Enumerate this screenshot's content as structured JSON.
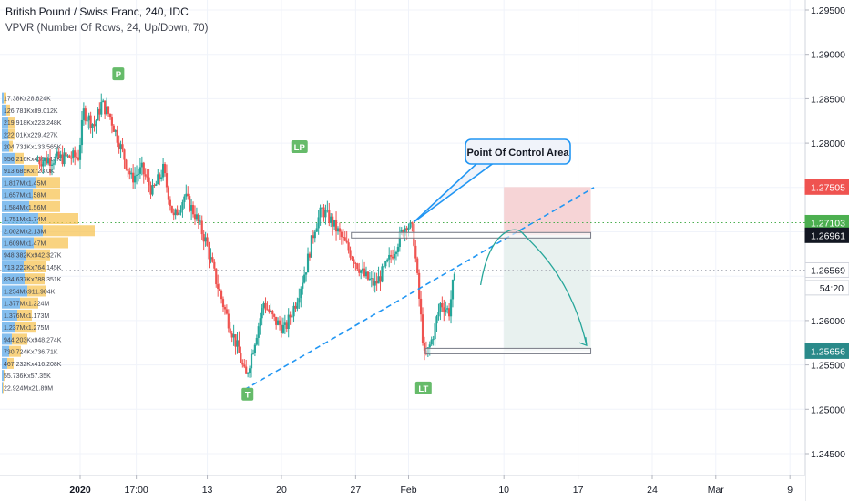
{
  "header": {
    "symbol_line": "British Pound / Swiss Franc, 240, IDC",
    "indicator_line": "VPVR (Number Of Rows, 24, Up/Down, 70)"
  },
  "colors": {
    "up": "#26a69a",
    "down": "#ef5350",
    "trendline": "#2196f3",
    "curve": "#26a69a",
    "dotted_green": "#4caf50",
    "vpvr_up": "#5ba8e8",
    "vpvr_down": "#f7c04a",
    "stop_zone": "#f6d4d6",
    "target_zone": "#e8f1ef"
  },
  "annotations": {
    "point_of_control": "Point Of Control Area",
    "labels": [
      {
        "text": "P",
        "x": 3.6,
        "y": 1.2878
      },
      {
        "text": "LP",
        "x": 20.7,
        "y": 1.2796
      },
      {
        "text": "T",
        "x": 15.8,
        "y": 1.2517
      },
      {
        "text": "LT",
        "x": 32.4,
        "y": 1.2524
      }
    ]
  },
  "chart_data": {
    "type": "candlestick",
    "title": "British Pound / Swiss Franc, 240, IDC",
    "x_range_days": [
      -5.3,
      56.2
    ],
    "ylim": [
      1.2405,
      1.2995
    ],
    "x_ticks": [
      {
        "label": "2020",
        "x": 0,
        "bold": true
      },
      {
        "label": "17:00",
        "x": 5.3
      },
      {
        "label": "13",
        "x": 12
      },
      {
        "label": "20",
        "x": 19
      },
      {
        "label": "27",
        "x": 26
      },
      {
        "label": "Feb",
        "x": 31
      },
      {
        "label": "10",
        "x": 40
      },
      {
        "label": "17",
        "x": 47
      },
      {
        "label": "24",
        "x": 54
      },
      {
        "label": "Mar",
        "x": 60
      },
      {
        "label": "9",
        "x": 67
      }
    ],
    "y_ticks": [
      "1.29500",
      "1.29000",
      "1.28500",
      "1.28000",
      "1.26000",
      "1.25500",
      "1.25000",
      "1.24500"
    ],
    "price_badges": [
      {
        "label": "1.27505",
        "value": 1.27505,
        "bg": "#ef5350",
        "fg": "#ffffff"
      },
      {
        "label": "1.27103",
        "value": 1.27103,
        "bg": "#4caf50",
        "fg": "#ffffff"
      },
      {
        "label": "1.26961",
        "value": 1.26961,
        "bg": "#131722",
        "fg": "#ffffff"
      },
      {
        "label": "1.26569",
        "value": 1.26569,
        "bg": "#ffffff",
        "fg": "#131722"
      },
      {
        "label": "54:20",
        "value": 1.2637,
        "bg": "#ffffff",
        "fg": "#131722"
      },
      {
        "label": "1.25656",
        "value": 1.25656,
        "bg": "#2a8a8a",
        "fg": "#ffffff"
      }
    ],
    "key_points": [
      {
        "x": -4,
        "y": 1.278
      },
      {
        "x": 0,
        "y": 1.2785
      },
      {
        "x": 0.5,
        "y": 1.2835
      },
      {
        "x": 1.5,
        "y": 1.282
      },
      {
        "x": 2.2,
        "y": 1.2845
      },
      {
        "x": 3,
        "y": 1.283
      },
      {
        "x": 4,
        "y": 1.2795
      },
      {
        "x": 5,
        "y": 1.276
      },
      {
        "x": 6,
        "y": 1.277
      },
      {
        "x": 7,
        "y": 1.2745
      },
      {
        "x": 8,
        "y": 1.277
      },
      {
        "x": 9,
        "y": 1.2715
      },
      {
        "x": 10,
        "y": 1.274
      },
      {
        "x": 11,
        "y": 1.272
      },
      {
        "x": 12,
        "y": 1.269
      },
      {
        "x": 13,
        "y": 1.2645
      },
      {
        "x": 14,
        "y": 1.2605
      },
      {
        "x": 15,
        "y": 1.257
      },
      {
        "x": 15.8,
        "y": 1.2535
      },
      {
        "x": 16.5,
        "y": 1.257
      },
      {
        "x": 17.5,
        "y": 1.262
      },
      {
        "x": 18.5,
        "y": 1.26
      },
      {
        "x": 19.5,
        "y": 1.259
      },
      {
        "x": 20.5,
        "y": 1.262
      },
      {
        "x": 21.5,
        "y": 1.266
      },
      {
        "x": 22.3,
        "y": 1.2705
      },
      {
        "x": 23,
        "y": 1.2725
      },
      {
        "x": 24,
        "y": 1.271
      },
      {
        "x": 25,
        "y": 1.269
      },
      {
        "x": 26,
        "y": 1.267
      },
      {
        "x": 27,
        "y": 1.265
      },
      {
        "x": 28,
        "y": 1.264
      },
      {
        "x": 29,
        "y": 1.266
      },
      {
        "x": 30,
        "y": 1.2685
      },
      {
        "x": 31,
        "y": 1.271
      },
      {
        "x": 31.6,
        "y": 1.27
      },
      {
        "x": 32.2,
        "y": 1.262
      },
      {
        "x": 32.7,
        "y": 1.2555
      },
      {
        "x": 33.4,
        "y": 1.258
      },
      {
        "x": 34.2,
        "y": 1.262
      },
      {
        "x": 35,
        "y": 1.261
      },
      {
        "x": 35.4,
        "y": 1.2645
      }
    ],
    "trendline": {
      "x1": 15.5,
      "y1": 1.2522,
      "x2": 48.5,
      "y2": 1.275
    },
    "poc_boxes": [
      {
        "x1": 25.6,
        "x2": 48.2,
        "y": 1.26961
      },
      {
        "x1": 32.6,
        "x2": 48.2,
        "y": 1.25656
      }
    ],
    "stop_zone": {
      "x1": 40,
      "x2": 48.2,
      "y_top": 1.27505,
      "y_bottom": 1.26961
    },
    "target_zone": {
      "x1": 40,
      "x2": 48.2,
      "y_top": 1.26961,
      "y_bottom": 1.25656
    },
    "dotted_lines": [
      {
        "value": 1.27103,
        "color": "#4caf50"
      },
      {
        "value": 1.26569,
        "color": "#b2b5be"
      }
    ],
    "projection_curve": {
      "start": [
        37.8,
        1.264
      ],
      "peak": [
        41.8,
        1.2698
      ],
      "end": [
        47.8,
        1.2572
      ]
    },
    "vpvr_rows": [
      "17.38Kx28.624K",
      "126.781Kx89.012K",
      "219.918Kx223.248K",
      "222.01Kx229.427K",
      "204.731Kx133.565K",
      "556.216Kx436.117K",
      "913.685Kx723.0K",
      "1.817Mx1.45M",
      "1.657Mx1.58M",
      "1.584Mx1.56M",
      "1.751Mx1.74M",
      "2.002Mx2.13M",
      "1.609Mx1.47M",
      "948.382Kx942.327K",
      "713.222Kx764.145K",
      "834.637Kx788.351K",
      "1.254Mx911.904K",
      "1.377Mx1.224M",
      "1.376Mx1.173M",
      "1.237Mx1.275M",
      "944.203Kx948.274K",
      "730.724Kx736.71K",
      "467.232Kx416.208K",
      "55.736Kx57.35K",
      "22.924Mx21.89M"
    ],
    "vpvr_up_widths": [
      2,
      5,
      7,
      7,
      8,
      14,
      24,
      38,
      34,
      30,
      40,
      45,
      35,
      27,
      24,
      25,
      28,
      20,
      17,
      15,
      11,
      8,
      6,
      2,
      1
    ],
    "vpvr_down_widths": [
      3,
      4,
      7,
      7,
      4,
      10,
      16,
      26,
      30,
      34,
      44,
      57,
      38,
      26,
      25,
      22,
      21,
      20,
      16,
      22,
      17,
      13,
      7,
      2,
      1
    ]
  }
}
